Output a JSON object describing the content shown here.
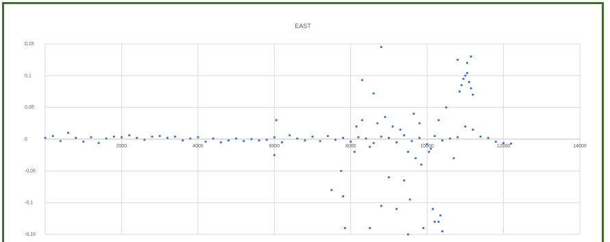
{
  "chart_data": {
    "type": "scatter",
    "title": "EAST",
    "xlabel": "",
    "ylabel": "",
    "xlim": [
      0,
      14000
    ],
    "ylim": [
      -0.15,
      0.15
    ],
    "x_ticks": [
      2000,
      4000,
      6000,
      8000,
      10000,
      12000,
      14000
    ],
    "x_tick_labels": [
      "2000",
      "4000",
      "6000",
      "8000",
      "10000",
      "12000",
      "14000"
    ],
    "y_ticks": [
      0.15,
      0.1,
      0.05,
      0,
      -0.05,
      -0.1,
      -0.15
    ],
    "y_tick_labels": [
      "0,15",
      "0,1",
      "0,05",
      "0",
      "-0,05",
      "-0,1",
      "-0,15"
    ],
    "grid": true,
    "series": [
      {
        "color": "#4472c4",
        "x": [
          0,
          200,
          400,
          600,
          800,
          1000,
          1200,
          1400,
          1600,
          1800,
          2000,
          2200,
          2400,
          2600,
          2800,
          3000,
          3200,
          3400,
          3600,
          3800,
          4000,
          4200,
          4400,
          4600,
          4800,
          5000,
          5200,
          5400,
          5600,
          5800,
          6000,
          6200,
          6400,
          6600,
          6800,
          7000,
          7200,
          7400,
          7600,
          7800,
          8000,
          8200,
          8400,
          8600,
          8800,
          9000,
          9200,
          9400,
          9600,
          9800,
          10000,
          10200,
          10400,
          10600,
          10800,
          11000,
          11200,
          11400,
          11600,
          11800,
          12000,
          12200,
          8100,
          8150,
          8300,
          8500,
          8700,
          8900,
          9100,
          9300,
          9500,
          9650,
          9800,
          10100,
          10300,
          10500,
          10700,
          10850,
          10900,
          10950,
          11000,
          11050,
          11100,
          11150,
          11200,
          6000,
          6050,
          7500,
          8600,
          8300,
          8800,
          10800,
          11050,
          11150,
          9200,
          9500,
          9900,
          10300,
          10350,
          10400,
          7750,
          7800,
          7850,
          8500,
          8800,
          9000,
          9400,
          9550,
          9700,
          9850,
          10050,
          10150,
          10200
        ],
        "values": [
          0.002,
          0.005,
          -0.003,
          0.01,
          0.002,
          -0.004,
          0.003,
          -0.006,
          0.001,
          0.004,
          0.003,
          0.006,
          0.002,
          -0.001,
          0.004,
          0.005,
          0.002,
          0.004,
          -0.002,
          0.001,
          0.003,
          -0.004,
          0.001,
          -0.005,
          -0.002,
          0.001,
          -0.003,
          0.0,
          -0.002,
          -0.001,
          0.003,
          -0.005,
          0.006,
          0.001,
          -0.002,
          0.004,
          -0.003,
          0.005,
          -0.001,
          0.002,
          -0.004,
          0.003,
          0.001,
          -0.006,
          0.004,
          0.002,
          -0.005,
          0.006,
          -0.003,
          0.002,
          -0.008,
          0.005,
          -0.002,
          0.001,
          0.003,
          0.02,
          0.015,
          0.004,
          0.002,
          -0.004,
          -0.006,
          -0.007,
          -0.02,
          0.02,
          0.03,
          -0.012,
          0.025,
          0.035,
          0.02,
          0.015,
          -0.02,
          0.04,
          0.025,
          -0.015,
          0.03,
          0.05,
          -0.03,
          0.075,
          0.085,
          0.095,
          0.1,
          0.104,
          0.09,
          0.08,
          0.07,
          -0.025,
          0.03,
          -0.08,
          0.072,
          0.093,
          0.145,
          0.125,
          0.12,
          0.13,
          -0.11,
          -0.15,
          -0.14,
          -0.13,
          -0.12,
          -0.145,
          -0.05,
          -0.09,
          -0.14,
          -0.14,
          -0.105,
          -0.06,
          -0.065,
          -0.095,
          -0.03,
          -0.04,
          -0.02,
          -0.11,
          -0.13
        ]
      }
    ]
  }
}
